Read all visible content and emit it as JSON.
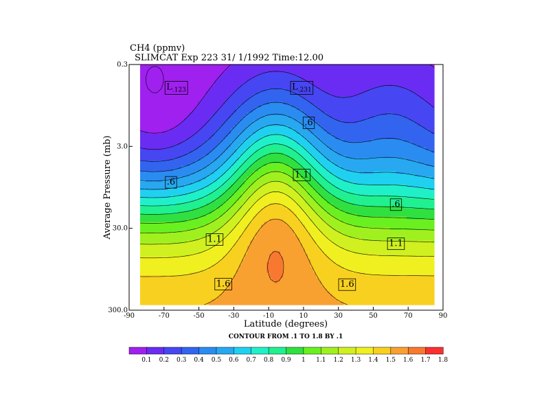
{
  "chart_data": {
    "type": "contour",
    "title": "CH4  (ppmv)",
    "subtitle": "SLIMCAT Exp 223  31/ 1/1992 Time:12.00",
    "xlabel": "Latitude (degrees)",
    "ylabel": "Average Pressure (mb)",
    "note": "CONTOUR FROM .1 TO 1.8 BY .1",
    "x_ticks": [
      "-90",
      "-70",
      "-50",
      "-30",
      "-10",
      "10",
      "30",
      "50",
      "70",
      "90"
    ],
    "y_ticks": [
      "0.3",
      "3.0",
      "30.0",
      "300.0"
    ],
    "xlim": [
      -90,
      90
    ],
    "ylim": [
      0.3,
      300
    ],
    "y_scale": "log",
    "colorbar": {
      "labels": [
        "0.1",
        "0.2",
        "0.3",
        "0.4",
        "0.5",
        "0.6",
        "0.7",
        "0.8",
        "0.9",
        "1",
        "1.1",
        "1.2",
        "1.3",
        "1.4",
        "1.5",
        "1.6",
        "1.7",
        "1.8"
      ],
      "colors": [
        "#a020f0",
        "#6a2cf2",
        "#4646f2",
        "#3264f0",
        "#2a8cf0",
        "#28a8f0",
        "#20d0f0",
        "#20f0c8",
        "#20f090",
        "#30e040",
        "#6af020",
        "#a0f020",
        "#d0f020",
        "#f0f020",
        "#f8d020",
        "#f8a030",
        "#f87830",
        "#f83030"
      ]
    },
    "contour_labels": [
      {
        "text": "L",
        "sub": ".123",
        "lat": -63,
        "p": 0.55
      },
      {
        "text": "L",
        "sub": ".231",
        "lat": 9,
        "p": 0.55
      },
      {
        "text": ".6",
        "lat": 13,
        "p": 1.5
      },
      {
        "text": ".6",
        "lat": -66,
        "p": 8.0
      },
      {
        "text": "1.1",
        "lat": 9,
        "p": 6.5
      },
      {
        "text": ".6",
        "lat": 63,
        "p": 15.0
      },
      {
        "text": "1.1",
        "lat": -41,
        "p": 40.0
      },
      {
        "text": "1.1",
        "lat": 63,
        "p": 45.0
      },
      {
        "text": "1.6",
        "lat": -36,
        "p": 140.0
      },
      {
        "text": "1.6",
        "lat": 35,
        "p": 142.0
      }
    ],
    "levels": [
      0.1,
      0.2,
      0.3,
      0.4,
      0.5,
      0.6,
      0.7,
      0.8,
      0.9,
      1.0,
      1.1,
      1.2,
      1.3,
      1.4,
      1.5,
      1.6,
      1.7,
      1.8
    ]
  }
}
